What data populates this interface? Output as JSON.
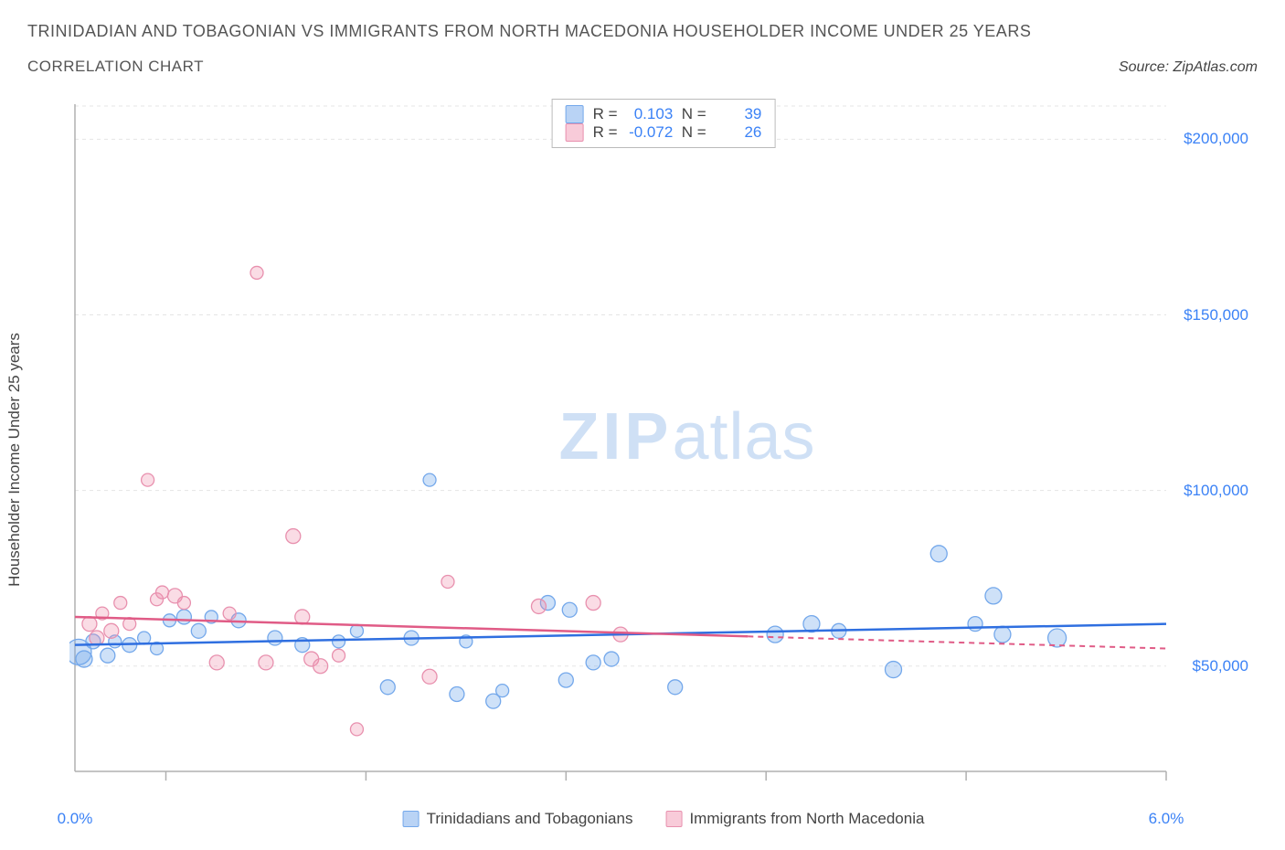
{
  "title": "TRINIDADIAN AND TOBAGONIAN VS IMMIGRANTS FROM NORTH MACEDONIA HOUSEHOLDER INCOME UNDER 25 YEARS",
  "subtitle": "CORRELATION CHART",
  "source": "Source: ZipAtlas.com",
  "y_axis_label": "Householder Income Under 25 years",
  "watermark_bold": "ZIP",
  "watermark_light": "atlas",
  "chart": {
    "type": "scatter",
    "xlim": [
      0.0,
      6.0
    ],
    "ylim": [
      20000,
      210000
    ],
    "x_ticks": [
      0.0,
      6.0
    ],
    "x_tick_labels": [
      "0.0%",
      "6.0%"
    ],
    "x_minor_ticks": [
      0.5,
      1.6,
      2.7,
      3.8,
      4.9
    ],
    "y_ticks": [
      50000,
      100000,
      150000,
      200000
    ],
    "y_tick_labels": [
      "$50,000",
      "$100,000",
      "$150,000",
      "$200,000"
    ],
    "grid_color": "#e5e5e5",
    "axis_color": "#b0b0b0",
    "background_color": "#ffffff",
    "series": [
      {
        "name": "Trinidadians and Tobagonians",
        "color_fill": "rgba(116,168,235,0.35)",
        "color_stroke": "#74a8eb",
        "trend_color": "#2f6fe0",
        "marker_radius": 8,
        "R": "0.103",
        "N": "39",
        "trend": {
          "x1": 0.0,
          "y1": 56000,
          "x2": 6.0,
          "y2": 62000,
          "dash_after_x": null
        },
        "points": [
          {
            "x": 0.02,
            "y": 54000,
            "r": 14
          },
          {
            "x": 0.05,
            "y": 52000,
            "r": 9
          },
          {
            "x": 0.1,
            "y": 57000,
            "r": 8
          },
          {
            "x": 0.18,
            "y": 53000,
            "r": 8
          },
          {
            "x": 0.22,
            "y": 57000,
            "r": 7
          },
          {
            "x": 0.3,
            "y": 56000,
            "r": 8
          },
          {
            "x": 0.38,
            "y": 58000,
            "r": 7
          },
          {
            "x": 0.45,
            "y": 55000,
            "r": 7
          },
          {
            "x": 0.52,
            "y": 63000,
            "r": 7
          },
          {
            "x": 0.6,
            "y": 64000,
            "r": 8
          },
          {
            "x": 0.68,
            "y": 60000,
            "r": 8
          },
          {
            "x": 0.75,
            "y": 64000,
            "r": 7
          },
          {
            "x": 0.9,
            "y": 63000,
            "r": 8
          },
          {
            "x": 1.1,
            "y": 58000,
            "r": 8
          },
          {
            "x": 1.25,
            "y": 56000,
            "r": 8
          },
          {
            "x": 1.45,
            "y": 57000,
            "r": 7
          },
          {
            "x": 1.55,
            "y": 60000,
            "r": 7
          },
          {
            "x": 1.72,
            "y": 44000,
            "r": 8
          },
          {
            "x": 1.85,
            "y": 58000,
            "r": 8
          },
          {
            "x": 1.95,
            "y": 103000,
            "r": 7
          },
          {
            "x": 2.1,
            "y": 42000,
            "r": 8
          },
          {
            "x": 2.15,
            "y": 57000,
            "r": 7
          },
          {
            "x": 2.3,
            "y": 40000,
            "r": 8
          },
          {
            "x": 2.35,
            "y": 43000,
            "r": 7
          },
          {
            "x": 2.6,
            "y": 68000,
            "r": 8
          },
          {
            "x": 2.7,
            "y": 46000,
            "r": 8
          },
          {
            "x": 2.72,
            "y": 66000,
            "r": 8
          },
          {
            "x": 2.85,
            "y": 51000,
            "r": 8
          },
          {
            "x": 2.95,
            "y": 52000,
            "r": 8
          },
          {
            "x": 3.3,
            "y": 44000,
            "r": 8
          },
          {
            "x": 3.85,
            "y": 59000,
            "r": 9
          },
          {
            "x": 4.05,
            "y": 62000,
            "r": 9
          },
          {
            "x": 4.2,
            "y": 60000,
            "r": 8
          },
          {
            "x": 4.5,
            "y": 49000,
            "r": 9
          },
          {
            "x": 4.75,
            "y": 82000,
            "r": 9
          },
          {
            "x": 5.05,
            "y": 70000,
            "r": 9
          },
          {
            "x": 5.1,
            "y": 59000,
            "r": 9
          },
          {
            "x": 5.4,
            "y": 58000,
            "r": 10
          },
          {
            "x": 4.95,
            "y": 62000,
            "r": 8
          }
        ]
      },
      {
        "name": "Immigants from North Macedonia",
        "display_name": "Immigrants from North Macedonia",
        "color_fill": "rgba(240,140,170,0.30)",
        "color_stroke": "#e890ae",
        "trend_color": "#e05b86",
        "marker_radius": 8,
        "R": "-0.072",
        "N": "26",
        "trend": {
          "x1": 0.0,
          "y1": 64000,
          "x2": 6.0,
          "y2": 55000,
          "dash_after_x": 3.7
        },
        "points": [
          {
            "x": 0.08,
            "y": 62000,
            "r": 8
          },
          {
            "x": 0.12,
            "y": 58000,
            "r": 8
          },
          {
            "x": 0.15,
            "y": 65000,
            "r": 7
          },
          {
            "x": 0.2,
            "y": 60000,
            "r": 8
          },
          {
            "x": 0.25,
            "y": 68000,
            "r": 7
          },
          {
            "x": 0.3,
            "y": 62000,
            "r": 7
          },
          {
            "x": 0.4,
            "y": 103000,
            "r": 7
          },
          {
            "x": 0.45,
            "y": 69000,
            "r": 7
          },
          {
            "x": 0.48,
            "y": 71000,
            "r": 7
          },
          {
            "x": 0.55,
            "y": 70000,
            "r": 8
          },
          {
            "x": 0.6,
            "y": 68000,
            "r": 7
          },
          {
            "x": 0.78,
            "y": 51000,
            "r": 8
          },
          {
            "x": 0.85,
            "y": 65000,
            "r": 7
          },
          {
            "x": 1.0,
            "y": 162000,
            "r": 7
          },
          {
            "x": 1.05,
            "y": 51000,
            "r": 8
          },
          {
            "x": 1.2,
            "y": 87000,
            "r": 8
          },
          {
            "x": 1.25,
            "y": 64000,
            "r": 8
          },
          {
            "x": 1.3,
            "y": 52000,
            "r": 8
          },
          {
            "x": 1.35,
            "y": 50000,
            "r": 8
          },
          {
            "x": 1.45,
            "y": 53000,
            "r": 7
          },
          {
            "x": 1.55,
            "y": 32000,
            "r": 7
          },
          {
            "x": 1.95,
            "y": 47000,
            "r": 8
          },
          {
            "x": 2.05,
            "y": 74000,
            "r": 7
          },
          {
            "x": 2.55,
            "y": 67000,
            "r": 8
          },
          {
            "x": 2.85,
            "y": 68000,
            "r": 8
          },
          {
            "x": 3.0,
            "y": 59000,
            "r": 8
          }
        ]
      }
    ],
    "legend_bottom": [
      {
        "label": "Trinidadians and Tobagonians",
        "fill": "rgba(116,168,235,0.5)",
        "stroke": "#74a8eb"
      },
      {
        "label": "Immigrants from North Macedonia",
        "fill": "rgba(240,140,170,0.45)",
        "stroke": "#e890ae"
      }
    ],
    "stats_box": {
      "rows": [
        {
          "fill": "rgba(116,168,235,0.5)",
          "stroke": "#74a8eb",
          "R_label": "R =",
          "R": "0.103",
          "N_label": "N =",
          "N": "39"
        },
        {
          "fill": "rgba(240,140,170,0.45)",
          "stroke": "#e890ae",
          "R_label": "R =",
          "R": "-0.072",
          "N_label": "N =",
          "N": "26"
        }
      ]
    }
  }
}
